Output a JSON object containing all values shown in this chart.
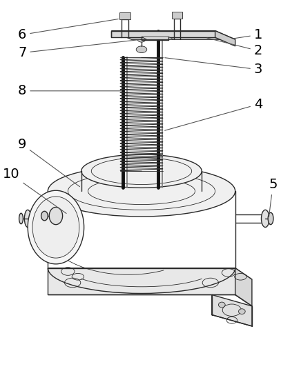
{
  "background_color": "#ffffff",
  "line_color": "#2a2a2a",
  "label_color": "#000000",
  "line_width": 1.0,
  "figsize": [
    4.07,
    5.67
  ],
  "dpi": 100
}
